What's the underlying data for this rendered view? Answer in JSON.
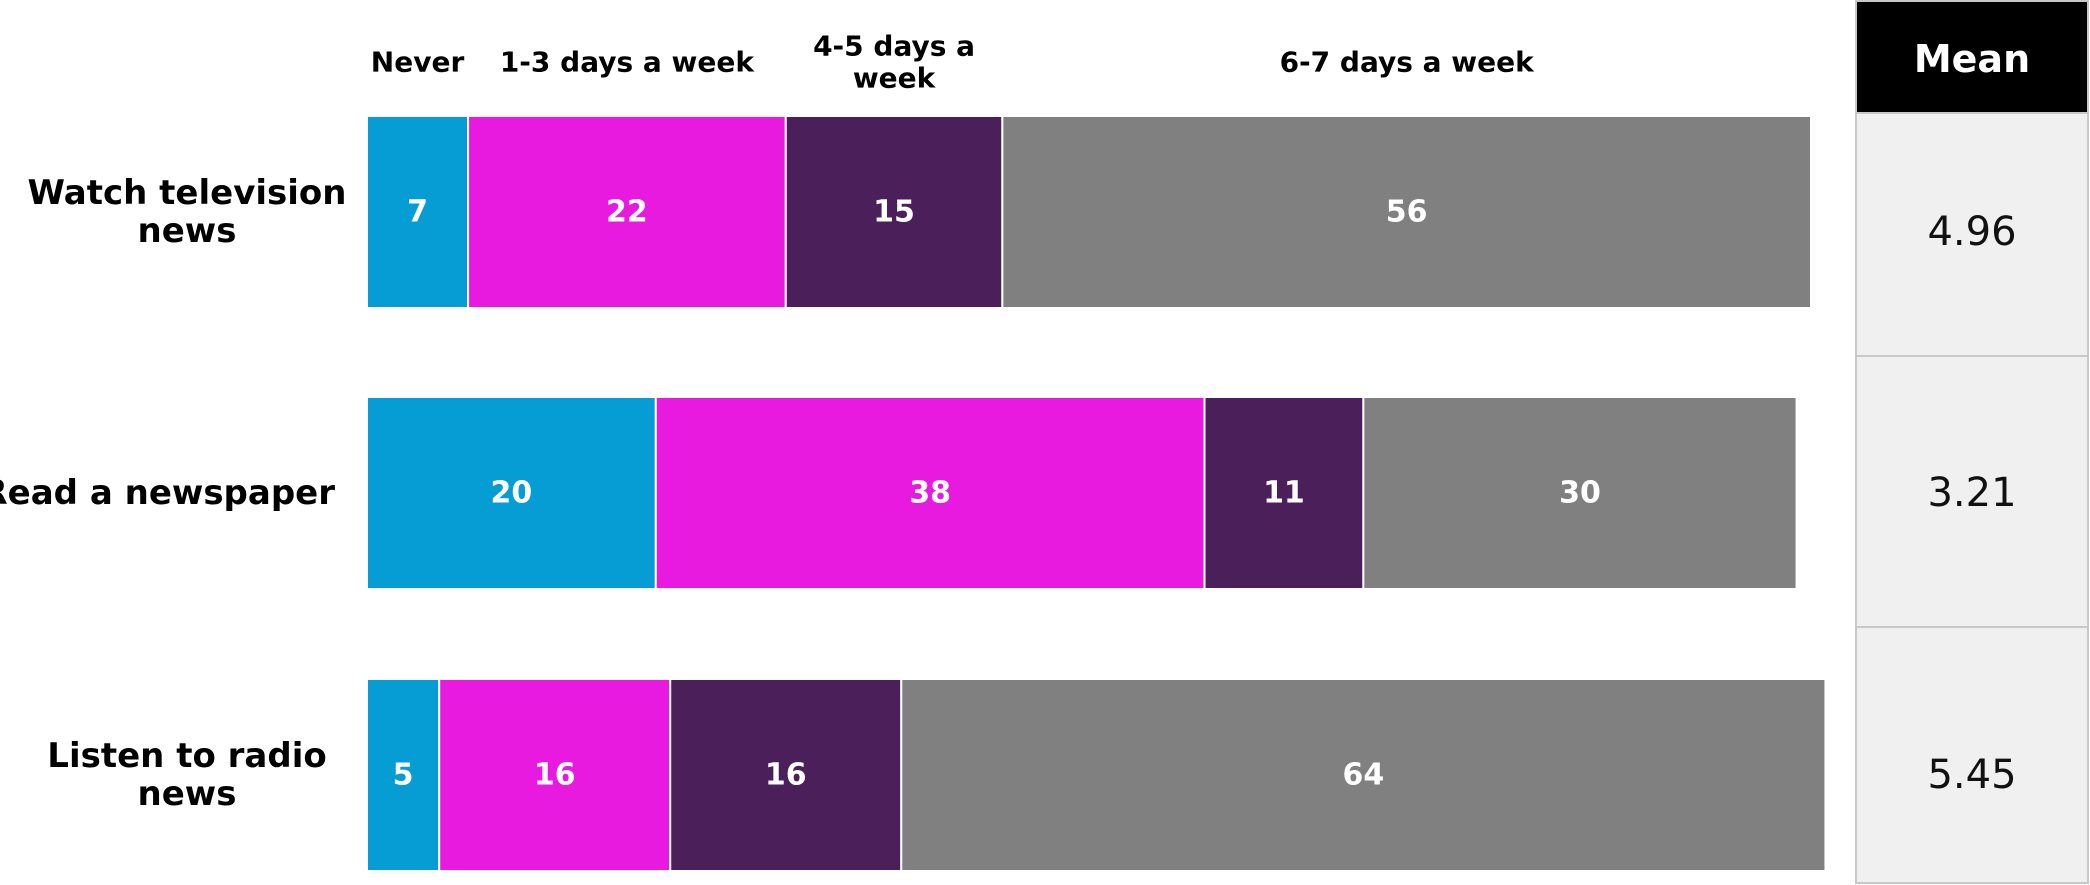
{
  "chart_data": {
    "type": "bar",
    "orientation": "horizontal",
    "stacked": true,
    "categories": [
      "Watch television news",
      "Read a newspaper",
      "Listen to radio news"
    ],
    "category_lines": [
      [
        "Watch television",
        "news"
      ],
      [
        "Read a newspaper"
      ],
      [
        "Listen to radio",
        "news"
      ]
    ],
    "series": [
      {
        "name": "Never",
        "name_lines": [
          "Never"
        ],
        "color": "#069dd5",
        "values": [
          7,
          20,
          5
        ]
      },
      {
        "name": "1-3 days a week",
        "name_lines": [
          "1-3 days a week"
        ],
        "color": "#e91ae0",
        "values": [
          22,
          38,
          16
        ]
      },
      {
        "name": "4-5 days a week",
        "name_lines": [
          "4-5 days a",
          "week"
        ],
        "color": "#4a1f5a",
        "values": [
          15,
          11,
          16
        ]
      },
      {
        "name": "6-7 days a week",
        "name_lines": [
          "6-7 days a week"
        ],
        "color": "#808080",
        "values": [
          56,
          30,
          64
        ]
      }
    ],
    "xlim": [
      0,
      100
    ],
    "legend": "top",
    "grid": false,
    "mean": {
      "title": "Mean",
      "values": [
        "4.96",
        "3.21",
        "5.45"
      ],
      "header_color": "#000000",
      "cell_color": "#f0f0f0"
    }
  }
}
